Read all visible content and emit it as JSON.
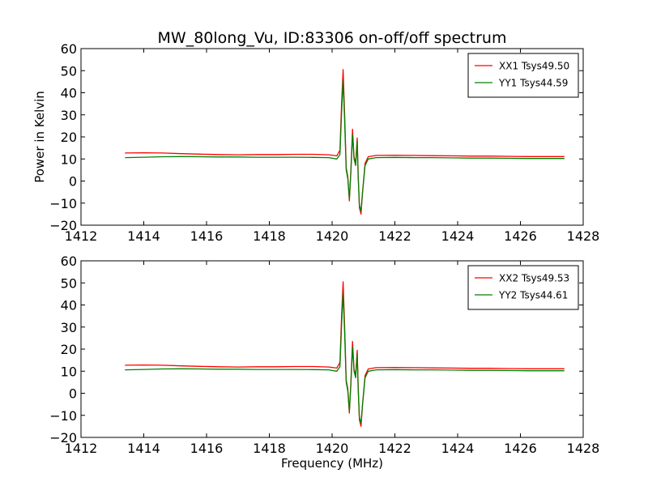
{
  "title": "MW_80long_Vu, ID:83306 on-off/off spectrum",
  "chart_data": [
    {
      "type": "line",
      "ylabel": "Power in Kelvin",
      "xlabel": "",
      "xlim": [
        1412,
        1428
      ],
      "ylim": [
        -20,
        60
      ],
      "xticks": [
        1412,
        1414,
        1416,
        1418,
        1420,
        1422,
        1424,
        1426,
        1428
      ],
      "yticks": [
        -20,
        -10,
        0,
        10,
        20,
        30,
        40,
        50,
        60
      ],
      "legend_position": "top-right",
      "grid": false,
      "series": [
        {
          "name": "XX1 Tsys49.50",
          "color": "#ff0000",
          "points": [
            [
              1413.4,
              12.7
            ],
            [
              1414.0,
              12.8
            ],
            [
              1414.6,
              12.7
            ],
            [
              1415.2,
              12.4
            ],
            [
              1415.8,
              12.2
            ],
            [
              1416.4,
              12.0
            ],
            [
              1417.0,
              11.9
            ],
            [
              1417.6,
              12.0
            ],
            [
              1418.2,
              12.0
            ],
            [
              1418.8,
              12.1
            ],
            [
              1419.4,
              12.1
            ],
            [
              1419.9,
              11.9
            ],
            [
              1420.15,
              11.4
            ],
            [
              1420.25,
              14.0
            ],
            [
              1420.3,
              34.0
            ],
            [
              1420.35,
              50.5
            ],
            [
              1420.4,
              30.0
            ],
            [
              1420.45,
              6.0
            ],
            [
              1420.5,
              2.0
            ],
            [
              1420.55,
              -9.0
            ],
            [
              1420.6,
              5.0
            ],
            [
              1420.65,
              23.5
            ],
            [
              1420.7,
              11.0
            ],
            [
              1420.75,
              8.0
            ],
            [
              1420.8,
              19.5
            ],
            [
              1420.83,
              3.0
            ],
            [
              1420.87,
              -12.0
            ],
            [
              1420.92,
              -15.0
            ],
            [
              1420.97,
              -5.0
            ],
            [
              1421.05,
              8.0
            ],
            [
              1421.15,
              11.0
            ],
            [
              1421.4,
              11.6
            ],
            [
              1422.0,
              11.7
            ],
            [
              1422.6,
              11.6
            ],
            [
              1423.2,
              11.5
            ],
            [
              1423.8,
              11.4
            ],
            [
              1424.4,
              11.3
            ],
            [
              1425.0,
              11.3
            ],
            [
              1425.6,
              11.2
            ],
            [
              1426.2,
              11.1
            ],
            [
              1426.8,
              11.1
            ],
            [
              1427.4,
              11.1
            ]
          ]
        },
        {
          "name": "YY1 Tsys44.59",
          "color": "#008000",
          "points": [
            [
              1413.4,
              10.6
            ],
            [
              1414.0,
              10.8
            ],
            [
              1414.6,
              11.0
            ],
            [
              1415.2,
              11.1
            ],
            [
              1415.8,
              11.0
            ],
            [
              1416.4,
              10.9
            ],
            [
              1417.0,
              10.9
            ],
            [
              1417.6,
              10.8
            ],
            [
              1418.2,
              10.8
            ],
            [
              1418.8,
              10.8
            ],
            [
              1419.4,
              10.7
            ],
            [
              1419.9,
              10.6
            ],
            [
              1420.15,
              10.0
            ],
            [
              1420.25,
              12.0
            ],
            [
              1420.3,
              30.0
            ],
            [
              1420.35,
              45.5
            ],
            [
              1420.4,
              27.0
            ],
            [
              1420.45,
              5.0
            ],
            [
              1420.5,
              1.0
            ],
            [
              1420.55,
              -8.0
            ],
            [
              1420.6,
              4.0
            ],
            [
              1420.65,
              21.0
            ],
            [
              1420.7,
              10.0
            ],
            [
              1420.75,
              7.0
            ],
            [
              1420.8,
              18.0
            ],
            [
              1420.83,
              2.0
            ],
            [
              1420.87,
              -11.0
            ],
            [
              1420.92,
              -13.5
            ],
            [
              1420.97,
              -5.0
            ],
            [
              1421.05,
              7.0
            ],
            [
              1421.15,
              10.0
            ],
            [
              1421.4,
              10.6
            ],
            [
              1422.0,
              10.7
            ],
            [
              1422.6,
              10.6
            ],
            [
              1423.2,
              10.6
            ],
            [
              1423.8,
              10.5
            ],
            [
              1424.4,
              10.4
            ],
            [
              1425.0,
              10.4
            ],
            [
              1425.6,
              10.3
            ],
            [
              1426.2,
              10.2
            ],
            [
              1426.8,
              10.2
            ],
            [
              1427.4,
              10.2
            ]
          ]
        }
      ]
    },
    {
      "type": "line",
      "ylabel": "",
      "xlabel": "Frequency (MHz)",
      "xlim": [
        1412,
        1428
      ],
      "ylim": [
        -20,
        60
      ],
      "xticks": [
        1412,
        1414,
        1416,
        1418,
        1420,
        1422,
        1424,
        1426,
        1428
      ],
      "yticks": [
        -20,
        -10,
        0,
        10,
        20,
        30,
        40,
        50,
        60
      ],
      "legend_position": "top-right",
      "grid": false,
      "series": [
        {
          "name": "XX2 Tsys49.53",
          "color": "#ff0000",
          "points": [
            [
              1413.4,
              12.7
            ],
            [
              1414.0,
              12.8
            ],
            [
              1414.6,
              12.7
            ],
            [
              1415.2,
              12.4
            ],
            [
              1415.8,
              12.2
            ],
            [
              1416.4,
              12.0
            ],
            [
              1417.0,
              11.9
            ],
            [
              1417.6,
              12.0
            ],
            [
              1418.2,
              12.0
            ],
            [
              1418.8,
              12.1
            ],
            [
              1419.4,
              12.1
            ],
            [
              1419.9,
              11.9
            ],
            [
              1420.15,
              11.4
            ],
            [
              1420.25,
              14.0
            ],
            [
              1420.3,
              34.0
            ],
            [
              1420.35,
              50.5
            ],
            [
              1420.4,
              30.0
            ],
            [
              1420.45,
              6.0
            ],
            [
              1420.5,
              2.0
            ],
            [
              1420.55,
              -9.0
            ],
            [
              1420.6,
              5.0
            ],
            [
              1420.65,
              23.5
            ],
            [
              1420.7,
              11.0
            ],
            [
              1420.75,
              8.0
            ],
            [
              1420.8,
              19.5
            ],
            [
              1420.83,
              3.0
            ],
            [
              1420.87,
              -12.0
            ],
            [
              1420.92,
              -15.0
            ],
            [
              1420.97,
              -5.0
            ],
            [
              1421.05,
              8.0
            ],
            [
              1421.15,
              11.0
            ],
            [
              1421.4,
              11.6
            ],
            [
              1422.0,
              11.7
            ],
            [
              1422.6,
              11.6
            ],
            [
              1423.2,
              11.5
            ],
            [
              1423.8,
              11.4
            ],
            [
              1424.4,
              11.3
            ],
            [
              1425.0,
              11.3
            ],
            [
              1425.6,
              11.2
            ],
            [
              1426.2,
              11.1
            ],
            [
              1426.8,
              11.1
            ],
            [
              1427.4,
              11.1
            ]
          ]
        },
        {
          "name": "YY2 Tsys44.61",
          "color": "#008000",
          "points": [
            [
              1413.4,
              10.6
            ],
            [
              1414.0,
              10.8
            ],
            [
              1414.6,
              11.0
            ],
            [
              1415.2,
              11.1
            ],
            [
              1415.8,
              11.0
            ],
            [
              1416.4,
              10.9
            ],
            [
              1417.0,
              10.9
            ],
            [
              1417.6,
              10.8
            ],
            [
              1418.2,
              10.8
            ],
            [
              1418.8,
              10.8
            ],
            [
              1419.4,
              10.7
            ],
            [
              1419.9,
              10.6
            ],
            [
              1420.15,
              10.0
            ],
            [
              1420.25,
              12.0
            ],
            [
              1420.3,
              30.0
            ],
            [
              1420.35,
              45.5
            ],
            [
              1420.4,
              27.0
            ],
            [
              1420.45,
              5.0
            ],
            [
              1420.5,
              1.0
            ],
            [
              1420.55,
              -8.0
            ],
            [
              1420.6,
              4.0
            ],
            [
              1420.65,
              21.0
            ],
            [
              1420.7,
              10.0
            ],
            [
              1420.75,
              7.0
            ],
            [
              1420.8,
              18.0
            ],
            [
              1420.83,
              2.0
            ],
            [
              1420.87,
              -11.0
            ],
            [
              1420.92,
              -13.5
            ],
            [
              1420.97,
              -5.0
            ],
            [
              1421.05,
              7.0
            ],
            [
              1421.15,
              10.0
            ],
            [
              1421.4,
              10.6
            ],
            [
              1422.0,
              10.7
            ],
            [
              1422.6,
              10.6
            ],
            [
              1423.2,
              10.6
            ],
            [
              1423.8,
              10.5
            ],
            [
              1424.4,
              10.4
            ],
            [
              1425.0,
              10.4
            ],
            [
              1425.6,
              10.3
            ],
            [
              1426.2,
              10.2
            ],
            [
              1426.8,
              10.2
            ],
            [
              1427.4,
              10.2
            ]
          ]
        }
      ]
    }
  ]
}
